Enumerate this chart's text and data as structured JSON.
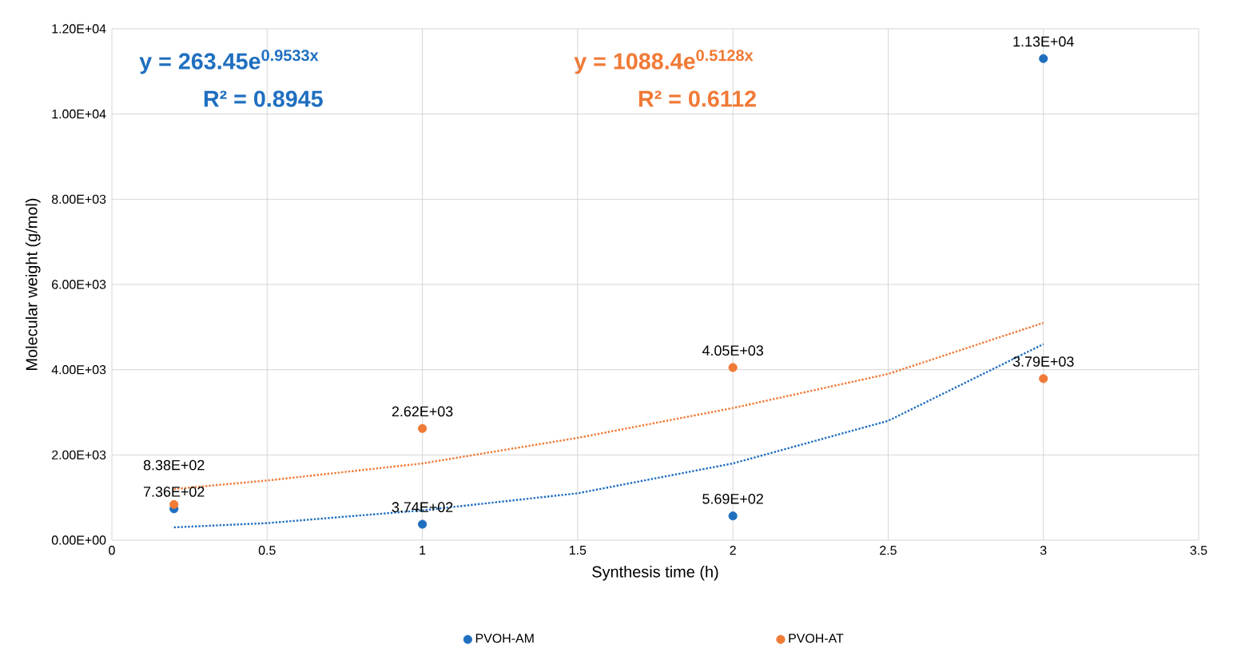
{
  "chart_data": {
    "type": "scatter",
    "xlabel": "Synthesis time (h)",
    "ylabel": "Molecular weight (g/mol)",
    "annotations": [
      "y = 263.45e$^{0.9533x}$",
      "R² = 0.8945",
      "y = 1088.4e$^{0.5128x}$",
      "R² = 0.6112"
    ],
    "series": [
      {
        "name": "PVOH-AM",
        "color": "#1f6fc0",
        "marker": "circle",
        "x": [
          0.2,
          1,
          2,
          3
        ],
        "values": [
          736,
          374,
          569,
          11300
        ],
        "value_labels": [
          "7.36E+02",
          "3.74E+02",
          "5.69E+02",
          "1.13E+04"
        ]
      },
      {
        "name": "PVOH-AT",
        "color": "#f07a36",
        "marker": "circle",
        "x": [
          0.2,
          1,
          2,
          3
        ],
        "values": [
          838,
          2620,
          4050,
          3790
        ],
        "value_labels": [
          "8.38E+02",
          "2.62E+03",
          "4.05E+03",
          "3.79E+03"
        ]
      },
      {
        "type": "line",
        "color": "#1f6fc0",
        "line_style": "dotted",
        "x": [
          0.2,
          0.5,
          1,
          1.5,
          2,
          2.5,
          3
        ],
        "values": [
          300,
          400,
          700,
          1100,
          1800,
          2800,
          4600
        ]
      },
      {
        "type": "line",
        "color": "#f07a36",
        "line_style": "dotted",
        "x": [
          0.2,
          0.5,
          1,
          1.5,
          2,
          2.5,
          3
        ],
        "values": [
          1200,
          1400,
          1800,
          2400,
          3100,
          3900,
          5100
        ]
      }
    ],
    "xlim": [
      0,
      3.5
    ],
    "xticks": [
      0,
      0.5,
      1,
      1.5,
      2,
      2.5,
      3,
      3.5
    ],
    "ylim": [
      0,
      12000
    ],
    "yticks": [
      {
        "value": 0,
        "label": "0.00E+00"
      },
      {
        "value": 2000,
        "label": "2.00E+03"
      },
      {
        "value": 4000,
        "label": "4.00E+03"
      },
      {
        "value": 6000,
        "label": "6.00E+03"
      },
      {
        "value": 8000,
        "label": "8.00E+03"
      },
      {
        "value": 10000,
        "label": "1.00E+04"
      },
      {
        "value": 12000,
        "label": "1.20E+04"
      }
    ],
    "grid": true,
    "legend": "bottom"
  }
}
